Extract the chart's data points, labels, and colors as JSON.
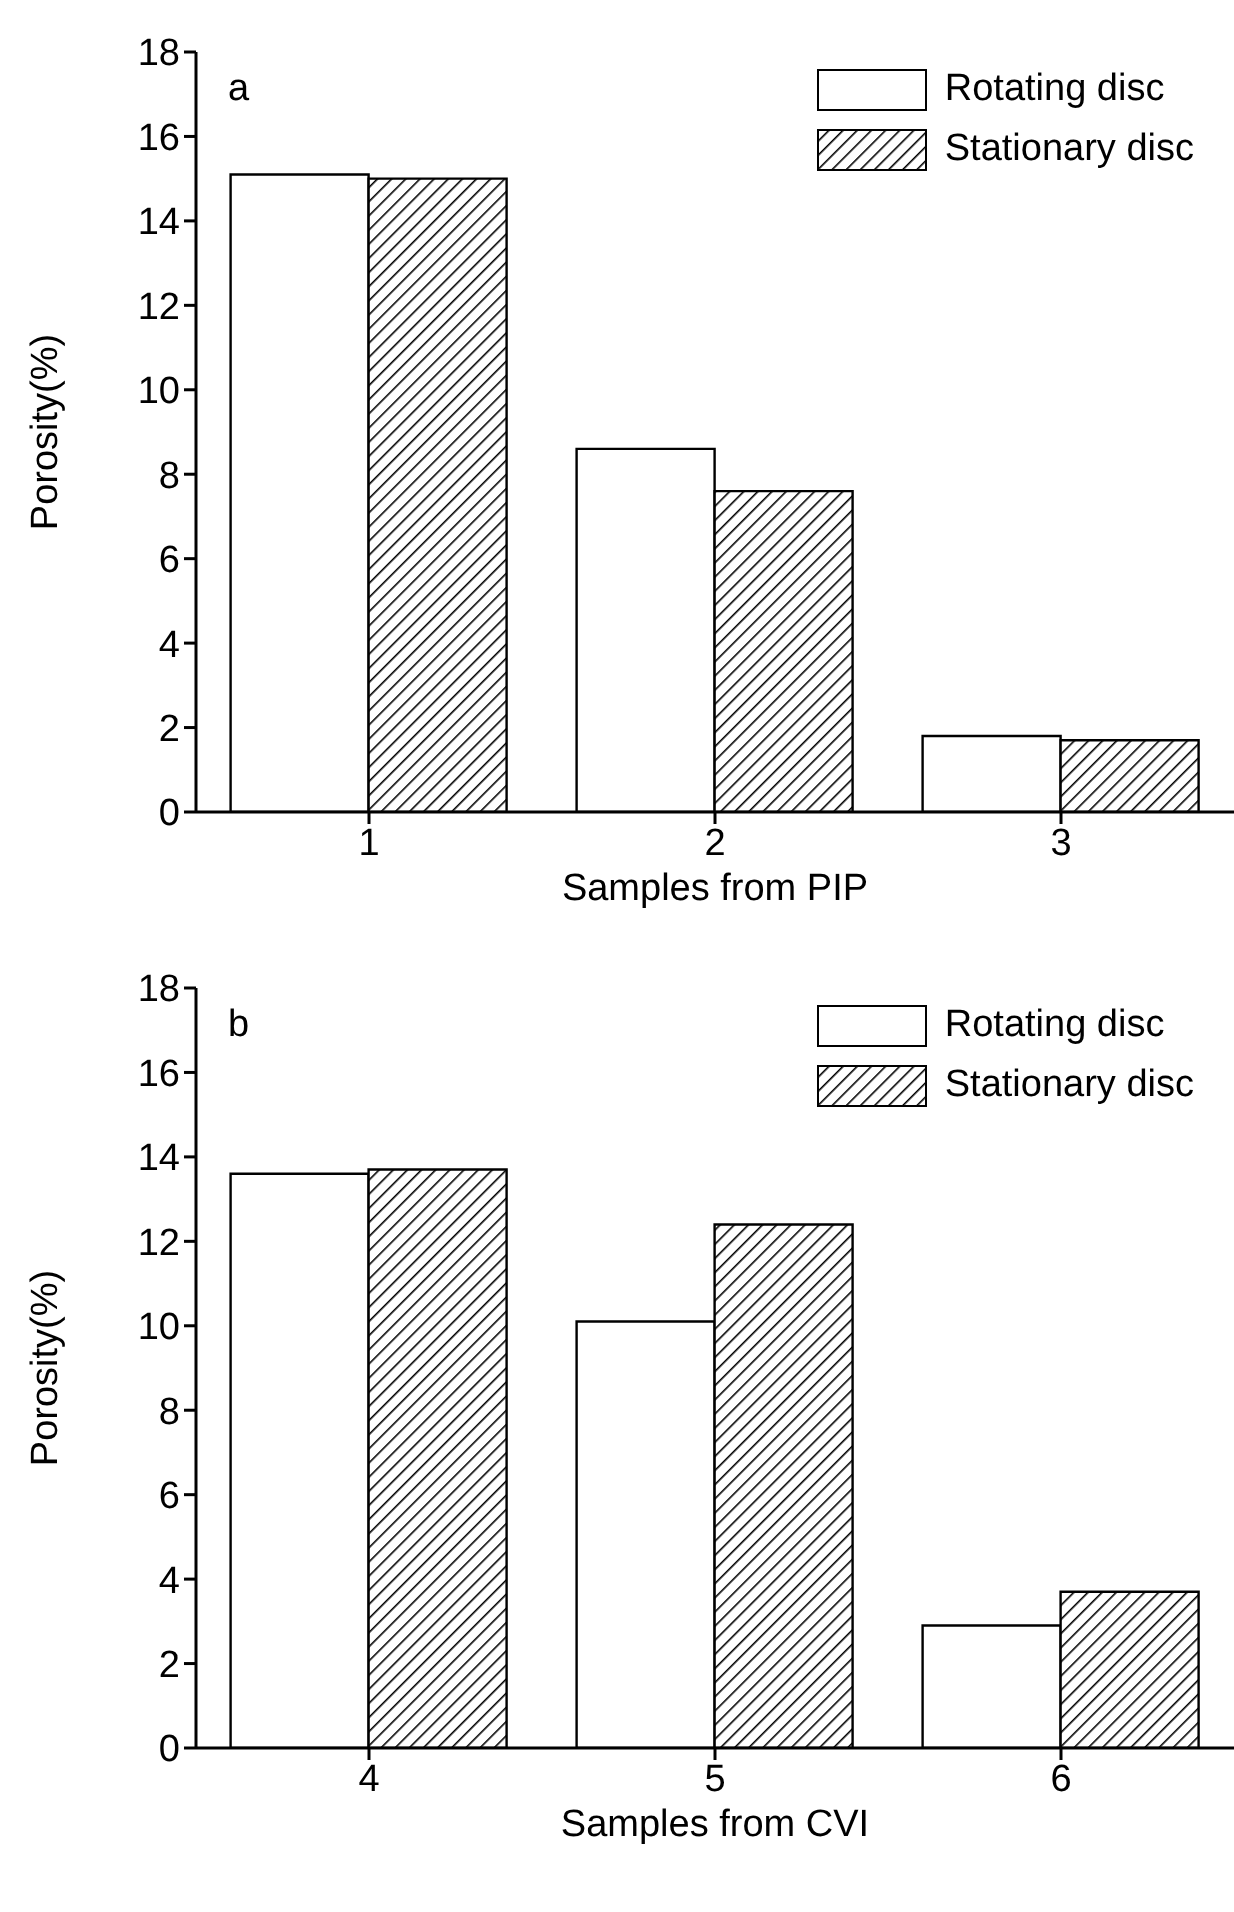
{
  "chart_data": [
    {
      "type": "bar",
      "xlabel": "Samples from PIP",
      "ylabel": "Porosity(%)",
      "categories": [
        "1",
        "2",
        "3"
      ],
      "ylim": [
        0,
        18
      ],
      "yticks": [
        0,
        2,
        4,
        6,
        8,
        10,
        12,
        14,
        16,
        18
      ],
      "legend": "top right",
      "annotations": [
        "a"
      ],
      "series": [
        {
          "name": "Rotating disc",
          "color": "#ffffff",
          "values": [
            15.1,
            8.6,
            1.8
          ]
        },
        {
          "name": "Stationary disc",
          "color": "#000000",
          "values": [
            15.0,
            7.6,
            1.7
          ]
        }
      ]
    },
    {
      "type": "bar",
      "xlabel": "Samples from CVI",
      "ylabel": "Porosity(%)",
      "categories": [
        "4",
        "5",
        "6"
      ],
      "ylim": [
        0,
        18
      ],
      "yticks": [
        0,
        2,
        4,
        6,
        8,
        10,
        12,
        14,
        16,
        18
      ],
      "legend": "top right",
      "annotations": [
        "b"
      ],
      "series": [
        {
          "name": "Rotating disc",
          "color": "#ffffff",
          "values": [
            13.6,
            10.1,
            2.9
          ]
        },
        {
          "name": "Stationary disc",
          "color": "#000000",
          "values": [
            13.7,
            12.4,
            3.7
          ]
        }
      ]
    }
  ]
}
